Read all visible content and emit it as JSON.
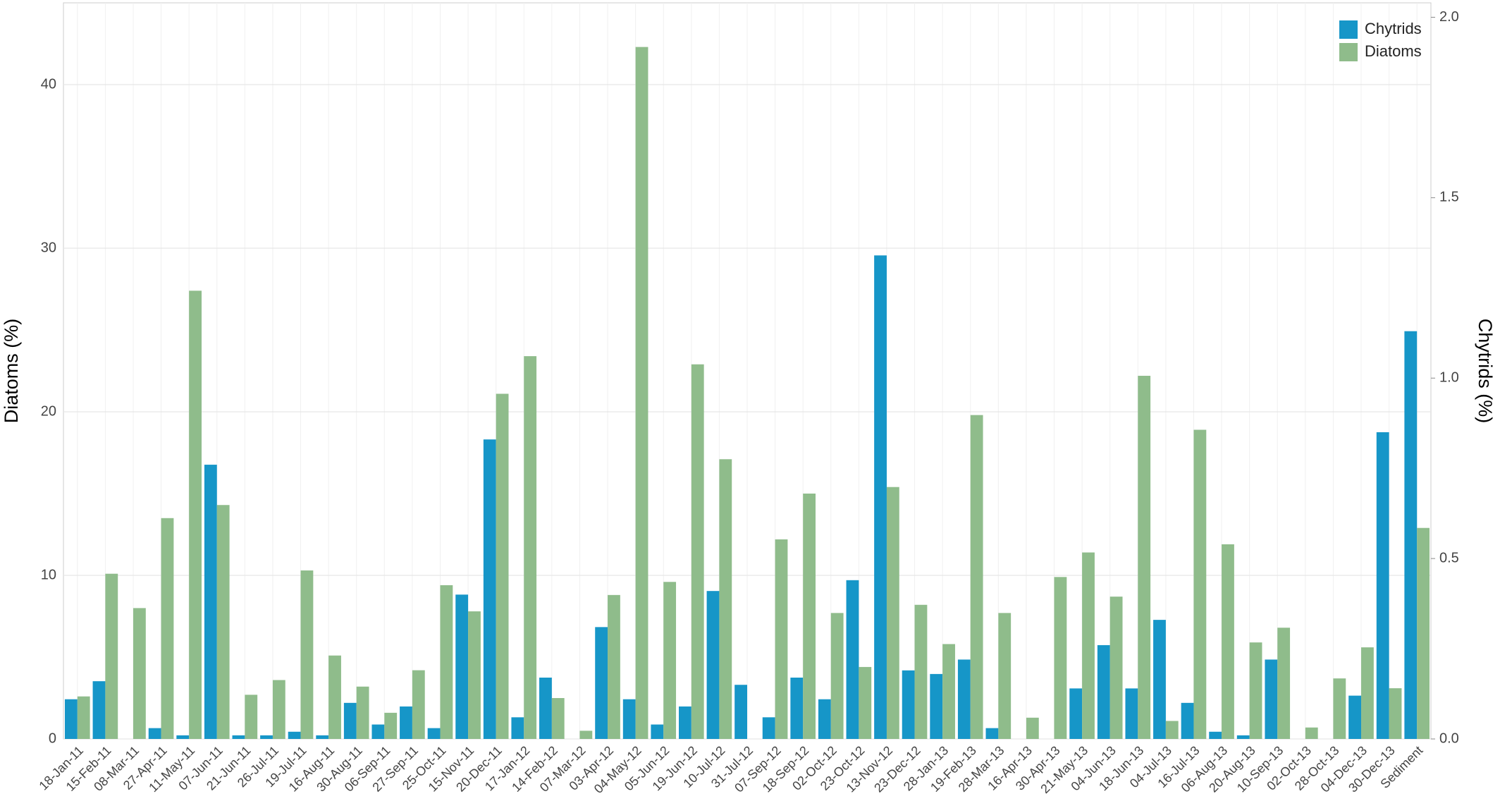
{
  "chart_data": {
    "type": "bar",
    "categories": [
      "18-Jan-11",
      "15-Feb-11",
      "08-Mar-11",
      "27-Apr-11",
      "11-May-11",
      "07-Jun-11",
      "21-Jun-11",
      "26-Jul-11",
      "19-Jul-11",
      "16-Aug-11",
      "30-Aug-11",
      "06-Sep-11",
      "27-Sep-11",
      "25-Oct-11",
      "15-Nov-11",
      "20-Dec-11",
      "17-Jan-12",
      "14-Feb-12",
      "07-Mar-12",
      "03-Apr-12",
      "04-May-12",
      "05-Jun-12",
      "19-Jun-12",
      "10-Jul-12",
      "31-Jul-12",
      "07-Sep-12",
      "18-Sep-12",
      "02-Oct-12",
      "23-Oct-12",
      "13-Nov-12",
      "23-Dec-12",
      "28-Jan-13",
      "19-Feb-13",
      "28-Mar-13",
      "16-Apr-13",
      "30-Apr-13",
      "21-May-13",
      "04-Jun-13",
      "18-Jun-13",
      "04-Jul-13",
      "16-Jul-13",
      "06-Aug-13",
      "20-Aug-13",
      "10-Sep-13",
      "02-Oct-13",
      "28-Oct-13",
      "04-Dec-13",
      "30-Dec-13",
      "Sediment"
    ],
    "series": [
      {
        "name": "Chytrids",
        "color": "#1696c8",
        "axis": "y2",
        "values": [
          0.11,
          0.16,
          0,
          0.03,
          0.01,
          0.76,
          0.01,
          0.01,
          0.02,
          0.01,
          0.1,
          0.04,
          0.09,
          0.03,
          0.4,
          0.83,
          0.06,
          0.17,
          0,
          0.31,
          0.11,
          0.04,
          0.09,
          0.41,
          0.15,
          0.06,
          0.17,
          0.11,
          0.44,
          1.34,
          0.19,
          0.18,
          0.22,
          0.03,
          0,
          0,
          0.14,
          0.26,
          0.14,
          0.33,
          0.1,
          0.02,
          0.01,
          0.22,
          0,
          0,
          0.12,
          0.85,
          1.13
        ]
      },
      {
        "name": "Diatoms",
        "color": "#8fbc8b",
        "values": [
          2.6,
          10.1,
          8.0,
          13.5,
          27.4,
          14.3,
          2.7,
          3.6,
          10.3,
          5.1,
          3.2,
          1.6,
          4.2,
          9.4,
          7.8,
          21.1,
          23.4,
          2.5,
          0.5,
          8.8,
          42.3,
          9.6,
          22.9,
          17.1,
          0,
          12.2,
          15.0,
          7.7,
          4.4,
          15.4,
          8.2,
          5.8,
          19.8,
          7.7,
          1.3,
          9.9,
          11.4,
          8.7,
          22.2,
          1.1,
          18.9,
          11.9,
          5.9,
          6.8,
          0.7,
          3.7,
          5.6,
          3.1,
          12.9
        ]
      }
    ],
    "ylabel": "Diatoms (%)",
    "y2label": "Chytrids (%)",
    "ylim": [
      0,
      45
    ],
    "yticks": [
      0,
      10,
      20,
      30,
      40
    ],
    "y2lim": [
      0,
      2.04
    ],
    "y2ticks": [
      {
        "value": 0,
        "label": "0.0"
      },
      0.5,
      {
        "value": 1,
        "label": "1.0"
      },
      1.5,
      {
        "value": 2,
        "label": "2.0"
      }
    ],
    "grid": true,
    "legend": "top-right"
  }
}
